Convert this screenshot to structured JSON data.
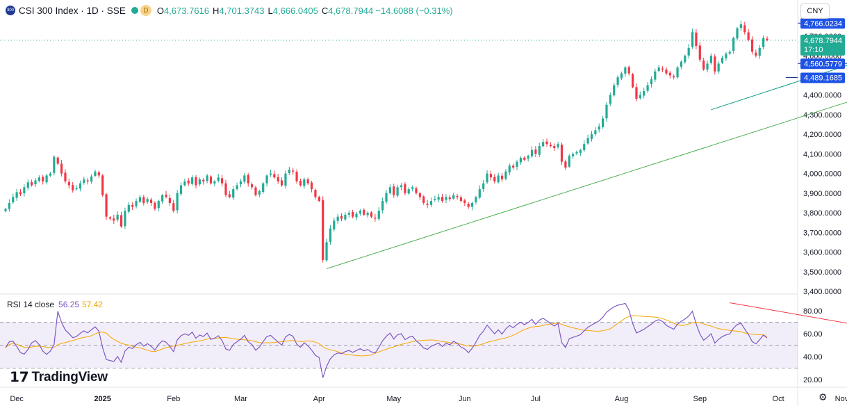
{
  "header": {
    "logo_text": "300",
    "symbol": "CSI 300 Index · 1D · SSE",
    "d_badge": "D",
    "open_label": "O",
    "open": "4,673.7616",
    "high_label": "H",
    "high": "4,701.3743",
    "low_label": "L",
    "low": "4,666.0405",
    "close_label": "C",
    "close": "4,678.7944",
    "change": "−14.6088 (−0.31%)"
  },
  "currency": "CNY",
  "rsi_label": {
    "name": "RSI 14 close",
    "rsi": "56.25",
    "ma": "57.42"
  },
  "brand": "TradingView",
  "colors": {
    "up": "#22ab94",
    "down": "#f23645",
    "rsi": "#7e57c2",
    "rsi_ma": "#f7a600",
    "trend_green": "#4caf50",
    "trend_teal": "#089981",
    "trend_red": "#f23645",
    "price_line": "#1e53e5"
  },
  "chart_data": [
    {
      "type": "candlestick",
      "title": "CSI 300 Index · 1D · SSE",
      "ylim": [
        3380,
        4790
      ],
      "y_ticks": [
        "3,400.0000",
        "3,500.0000",
        "3,600.0000",
        "3,700.0000",
        "3,800.0000",
        "3,900.0000",
        "4,000.0000",
        "4,100.0000",
        "4,200.0000",
        "4,300.0000",
        "4,400.0000"
      ],
      "x_month_labels": [
        {
          "label": "Dec",
          "index": 3
        },
        {
          "label": "2025",
          "index": 26
        },
        {
          "label": "Feb",
          "index": 45
        },
        {
          "label": "Mar",
          "index": 63
        },
        {
          "label": "Apr",
          "index": 84
        },
        {
          "label": "May",
          "index": 104
        },
        {
          "label": "Jun",
          "index": 123
        },
        {
          "label": "Jul",
          "index": 142
        },
        {
          "label": "Aug",
          "index": 165
        },
        {
          "label": "Sep",
          "index": 186
        },
        {
          "label": "Oct",
          "index": 207
        },
        {
          "label": "Nov",
          "index": 224
        }
      ],
      "price_labels": [
        {
          "value": 4766.0234,
          "text": "4,766.0234",
          "kind": "level"
        },
        {
          "value": 4678.7944,
          "text": "4,678.7944",
          "kind": "last",
          "extra": "17:10"
        },
        {
          "value": 4560.5779,
          "text": "4,560.5779",
          "kind": "level"
        },
        {
          "value": 4489.1685,
          "text": "4,489.1685",
          "kind": "level"
        }
      ],
      "axis_hidden_labels": [
        "4,700.0000",
        "4,600.0000"
      ],
      "trendlines": [
        {
          "color": "green",
          "from": [
            86,
            3515
          ],
          "to": [
            238,
            4440
          ]
        },
        {
          "color": "teal",
          "from": [
            189,
            4325
          ],
          "to": [
            235,
            4610
          ]
        }
      ],
      "level_segments": [
        {
          "value": 4766.0234,
          "from": 220,
          "to": 238
        },
        {
          "value": 4560.5779,
          "from": 227,
          "to": 238
        },
        {
          "value": 4489.1685,
          "from": 209,
          "to": 238
        }
      ],
      "closes": [
        3820,
        3850,
        3880,
        3905,
        3895,
        3930,
        3955,
        3940,
        3965,
        3980,
        3960,
        3990,
        4000,
        4085,
        4050,
        4000,
        3960,
        3940,
        3915,
        3925,
        3950,
        3970,
        3960,
        3985,
        4010,
        3990,
        3890,
        3780,
        3770,
        3760,
        3790,
        3730,
        3810,
        3840,
        3830,
        3860,
        3880,
        3850,
        3870,
        3850,
        3820,
        3860,
        3890,
        3880,
        3850,
        3810,
        3900,
        3940,
        3960,
        3950,
        3980,
        3940,
        3970,
        3960,
        3990,
        3950,
        3960,
        3980,
        3950,
        3890,
        3880,
        3920,
        3940,
        3960,
        3990,
        3950,
        3930,
        3890,
        3910,
        3950,
        3990,
        4000,
        3980,
        3960,
        3940,
        4000,
        4020,
        4010,
        3960,
        3940,
        3970,
        3950,
        3920,
        3880,
        3860,
        3560,
        3650,
        3720,
        3760,
        3780,
        3770,
        3790,
        3800,
        3780,
        3795,
        3810,
        3790,
        3800,
        3780,
        3770,
        3810,
        3860,
        3900,
        3930,
        3890,
        3930,
        3940,
        3900,
        3920,
        3930,
        3900,
        3880,
        3850,
        3840,
        3860,
        3870,
        3880,
        3860,
        3880,
        3870,
        3890,
        3880,
        3860,
        3850,
        3830,
        3850,
        3880,
        3920,
        3950,
        4000,
        3980,
        3960,
        3990,
        3970,
        4010,
        4040,
        4030,
        4060,
        4080,
        4070,
        4090,
        4120,
        4100,
        4140,
        4160,
        4150,
        4140,
        4130,
        4150,
        4060,
        4030,
        4090,
        4100,
        4110,
        4120,
        4150,
        4180,
        4200,
        4220,
        4240,
        4280,
        4350,
        4400,
        4450,
        4490,
        4510,
        4540,
        4510,
        4440,
        4380,
        4400,
        4420,
        4450,
        4480,
        4520,
        4540,
        4530,
        4510,
        4500,
        4490,
        4540,
        4570,
        4600,
        4640,
        4720,
        4650,
        4580,
        4530,
        4560,
        4600,
        4520,
        4560,
        4590,
        4610,
        4620,
        4690,
        4740,
        4760,
        4720,
        4680,
        4620,
        4600,
        4640,
        4690,
        4679
      ],
      "last_close": 4678.7944
    },
    {
      "type": "line",
      "title": "RSI 14 close",
      "series": [
        {
          "name": "RSI",
          "current": 56.25
        },
        {
          "name": "RSI-based MA",
          "current": 57.42
        }
      ],
      "ylim": [
        15,
        88
      ],
      "y_ticks": [
        "20.00",
        "40.00",
        "60.00",
        "80.00"
      ],
      "bands": {
        "upper": 70,
        "middle": 50,
        "lower": 30
      }
    }
  ]
}
